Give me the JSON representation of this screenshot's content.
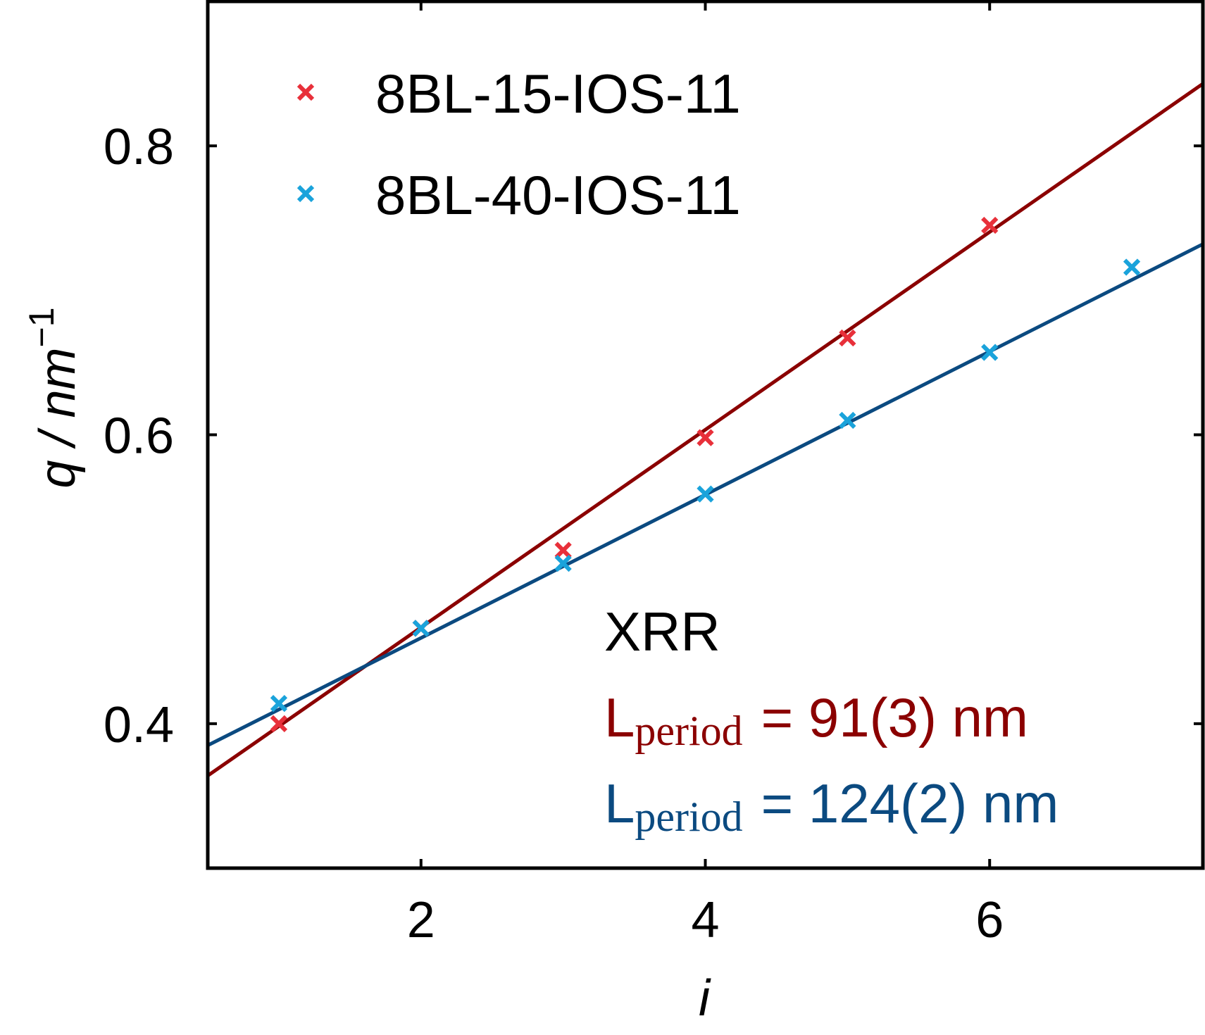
{
  "chart_data": {
    "type": "scatter",
    "xlabel": "i",
    "ylabel": "q / nm",
    "ylabel_exponent": "−1",
    "xlim": [
      0.5,
      7.5
    ],
    "ylim": [
      0.3,
      0.9
    ],
    "xticks": [
      2,
      4,
      6
    ],
    "xtick_labels": [
      "2",
      "4",
      "6"
    ],
    "yticks": [
      0.4,
      0.6,
      0.8
    ],
    "ytick_labels": [
      "0.4",
      "0.6",
      "0.8"
    ],
    "grid": false,
    "legend_position": "top-left",
    "series": [
      {
        "name": "8BL-15-IOS-11",
        "marker_color": "#e8303a",
        "fit_color": "#8b0000",
        "x": [
          1,
          2,
          3,
          4,
          5,
          6
        ],
        "y": [
          0.4,
          0.466,
          0.52,
          0.598,
          0.667,
          0.745
        ],
        "fit": {
          "x": [
            0.5,
            7.5
          ],
          "y": [
            0.364,
            0.843
          ]
        }
      },
      {
        "name": "8BL-40-IOS-11",
        "marker_color": "#1aa3db",
        "fit_color": "#0b4a80",
        "x": [
          1,
          2,
          3,
          4,
          5,
          6,
          7
        ],
        "y": [
          0.414,
          0.466,
          0.511,
          0.559,
          0.61,
          0.657,
          0.716
        ],
        "fit": {
          "x": [
            0.5,
            7.5
          ],
          "y": [
            0.385,
            0.732
          ]
        }
      }
    ],
    "annotations": {
      "method": "XRR",
      "l_symbol": "L",
      "l_subscript": "period",
      "result_1": "= 91(3) nm",
      "result_2": "= 124(2) nm",
      "result_1_color": "#8b0000",
      "result_2_color": "#0b4a80"
    }
  }
}
